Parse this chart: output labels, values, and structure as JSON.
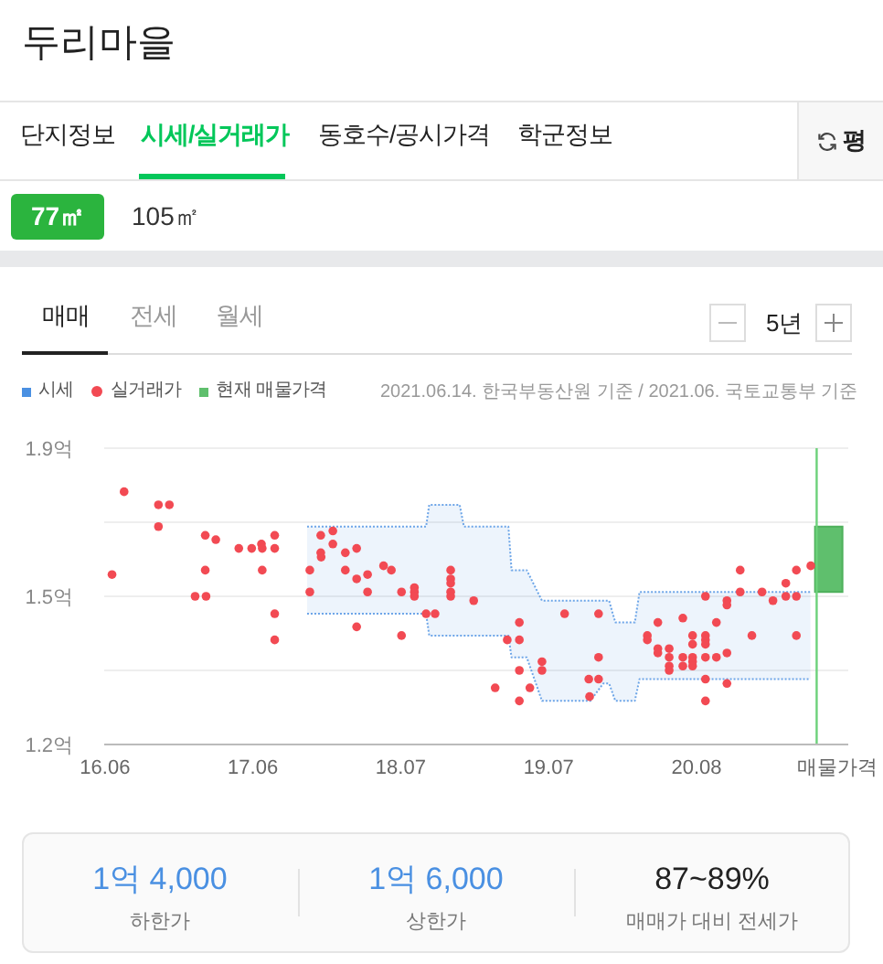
{
  "chart_data": {
    "type": "scatter",
    "title": "두리마을",
    "annotations": [
      "단지정보",
      "시세/실거래가",
      "동호수/공시가격",
      "학군정보",
      "평",
      "77㎡",
      "105㎡",
      "매매",
      "전세",
      "월세",
      "5년",
      "2021.06.14. 한국부동산원 기준 / 2021.06. 국토교통부 기준",
      "1억 4,000",
      "하한가",
      "1억 6,000",
      "상한가",
      "87~89%",
      "매매가 대비 전세가"
    ],
    "xlim": [
      "2016-06-14",
      "2021-09-03"
    ],
    "xticks": [
      {
        "value": "2016-06-16",
        "label": "16.06"
      },
      {
        "value": "2017-06-30",
        "label": "17.06"
      },
      {
        "value": "2018-07-14",
        "label": "18.07"
      },
      {
        "value": "2019-07-28",
        "label": "19.07"
      },
      {
        "value": "2020-08-10",
        "label": "20.08"
      },
      {
        "value": "2021-08-05",
        "label": "매물가격"
      }
    ],
    "ylim": [
      1.2,
      1.88
    ],
    "yticks": [
      {
        "value": 1.2,
        "label": "1.2억"
      },
      {
        "value": 1.37,
        "label": null
      },
      {
        "value": 1.54,
        "label": "1.5억"
      },
      {
        "value": 1.71,
        "label": null
      },
      {
        "value": 1.88,
        "label": "1.9억"
      }
    ],
    "grid": "y",
    "legend": "top left",
    "ref_lines": [
      {
        "axis": "x",
        "value": "2021-06-14",
        "color": "#6cd17a"
      }
    ],
    "series": [
      {
        "name": "시세",
        "type": "line",
        "color": "#4a90e2",
        "line_style": "dotted",
        "x": [
          "2017-11-16",
          "2018-09-17",
          "2018-09-25",
          "2018-12-12",
          "2018-12-23",
          "2019-04-16",
          "2019-04-24",
          "2019-06-02",
          "2019-07-11",
          "2019-11-12",
          "2019-12-15",
          "2019-12-30",
          "2020-01-15",
          "2020-03-05",
          "2020-03-17",
          "2021-05-29"
        ],
        "values": [
          1.7,
          1.7,
          1.75,
          1.75,
          1.7,
          1.7,
          1.6,
          1.6,
          1.53,
          1.53,
          1.53,
          1.53,
          1.48,
          1.48,
          1.55,
          1.55
        ],
        "lower": [
          1.5,
          1.5,
          1.45,
          1.45,
          1.45,
          1.45,
          1.4,
          1.4,
          1.3,
          1.3,
          1.34,
          1.34,
          1.3,
          1.3,
          1.35,
          1.35
        ],
        "upper": [
          1.7,
          1.7,
          1.75,
          1.75,
          1.7,
          1.7,
          1.6,
          1.6,
          1.53,
          1.53,
          1.53,
          1.53,
          1.48,
          1.48,
          1.55,
          1.55
        ]
      },
      {
        "name": "실거래가",
        "color": "#f24a53",
        "marker": "circle",
        "x": [
          "2016-07-04",
          "2016-08-04",
          "2016-10-31",
          "2016-11-28",
          "2016-10-31",
          "2017-02-28",
          "2017-03-27",
          "2017-02-28",
          "2017-02-02",
          "2017-03-02",
          "2017-05-25",
          "2017-06-27",
          "2017-07-22",
          "2017-07-24",
          "2017-08-25",
          "2017-08-25",
          "2017-07-24",
          "2017-08-25",
          "2017-08-25",
          "2017-11-23",
          "2017-11-23",
          "2017-12-21",
          "2017-12-21",
          "2017-12-22",
          "2018-01-21",
          "2018-01-21",
          "2018-02-22",
          "2018-02-22",
          "2018-03-23",
          "2018-03-23",
          "2018-03-23",
          "2018-04-20",
          "2018-04-20",
          "2018-05-31",
          "2018-06-20",
          "2018-07-16",
          "2018-07-16",
          "2018-08-18",
          "2018-08-18",
          "2018-08-18",
          "2018-09-17",
          "2018-10-10",
          "2018-11-19",
          "2018-11-19",
          "2018-11-19",
          "2018-11-19",
          "2018-11-19",
          "2019-01-17",
          "2019-03-13",
          "2019-04-13",
          "2019-05-14",
          "2019-05-14",
          "2019-05-14",
          "2019-05-14",
          "2019-06-10",
          "2019-07-11",
          "2019-07-11",
          "2019-09-07",
          "2019-11-08",
          "2019-11-10",
          "2019-12-03",
          "2019-12-03",
          "2019-12-03",
          "2020-04-06",
          "2020-04-06",
          "2020-05-03",
          "2020-05-03",
          "2020-05-03",
          "2020-06-01",
          "2020-06-01",
          "2020-06-01",
          "2020-06-01",
          "2020-07-06",
          "2020-07-06",
          "2020-07-06",
          "2020-07-31",
          "2020-07-31",
          "2020-07-31",
          "2020-07-31",
          "2020-07-31",
          "2020-09-02",
          "2020-09-02",
          "2020-09-02",
          "2020-09-02",
          "2020-09-02",
          "2020-09-02",
          "2020-09-02",
          "2020-09-30",
          "2020-09-30",
          "2020-10-27",
          "2020-10-27",
          "2020-10-27",
          "2020-10-27",
          "2020-11-30",
          "2020-11-30",
          "2020-12-30",
          "2021-01-25",
          "2021-02-22",
          "2021-03-27",
          "2021-03-27",
          "2021-04-23",
          "2021-04-23",
          "2021-04-23",
          "2021-05-30"
        ],
        "values": [
          1.59,
          1.78,
          1.75,
          1.75,
          1.7,
          1.68,
          1.67,
          1.6,
          1.54,
          1.54,
          1.65,
          1.65,
          1.66,
          1.65,
          1.68,
          1.65,
          1.6,
          1.5,
          1.44,
          1.6,
          1.55,
          1.68,
          1.64,
          1.63,
          1.69,
          1.66,
          1.64,
          1.6,
          1.65,
          1.58,
          1.47,
          1.59,
          1.55,
          1.61,
          1.6,
          1.55,
          1.45,
          1.56,
          1.55,
          1.54,
          1.5,
          1.5,
          1.6,
          1.58,
          1.57,
          1.55,
          1.54,
          1.53,
          1.33,
          1.44,
          1.48,
          1.44,
          1.37,
          1.3,
          1.33,
          1.39,
          1.37,
          1.5,
          1.35,
          1.31,
          1.5,
          1.4,
          1.35,
          1.45,
          1.44,
          1.48,
          1.42,
          1.41,
          1.42,
          1.4,
          1.38,
          1.37,
          1.49,
          1.4,
          1.38,
          1.45,
          1.43,
          1.4,
          1.39,
          1.38,
          1.54,
          1.45,
          1.44,
          1.43,
          1.4,
          1.35,
          1.3,
          1.48,
          1.4,
          1.53,
          1.52,
          1.41,
          1.34,
          1.6,
          1.55,
          1.45,
          1.55,
          1.53,
          1.57,
          1.54,
          1.6,
          1.54,
          1.45,
          1.61
        ]
      },
      {
        "name": "현재 매물가격",
        "type": "bar",
        "color": "#5fbf6d",
        "x": [
          "2021-07-15"
        ],
        "base": [
          1.55
        ],
        "values": [
          0.15
        ]
      },
      {
        "type": "line",
        "color": "#4a90e2",
        "line_style": "dotted",
        "x": [
          "2017-11-16",
          "2018-09-17",
          "2018-09-25",
          "2018-12-12",
          "2018-12-23",
          "2019-04-16",
          "2019-04-24",
          "2019-06-02",
          "2019-07-11",
          "2019-11-12",
          "2019-12-15",
          "2019-12-30",
          "2020-01-15",
          "2020-03-05",
          "2020-03-17",
          "2021-05-29"
        ],
        "values": [
          1.5,
          1.5,
          1.45,
          1.45,
          1.45,
          1.45,
          1.4,
          1.4,
          1.3,
          1.3,
          1.34,
          1.34,
          1.3,
          1.3,
          1.35,
          1.35
        ]
      }
    ]
  }
}
